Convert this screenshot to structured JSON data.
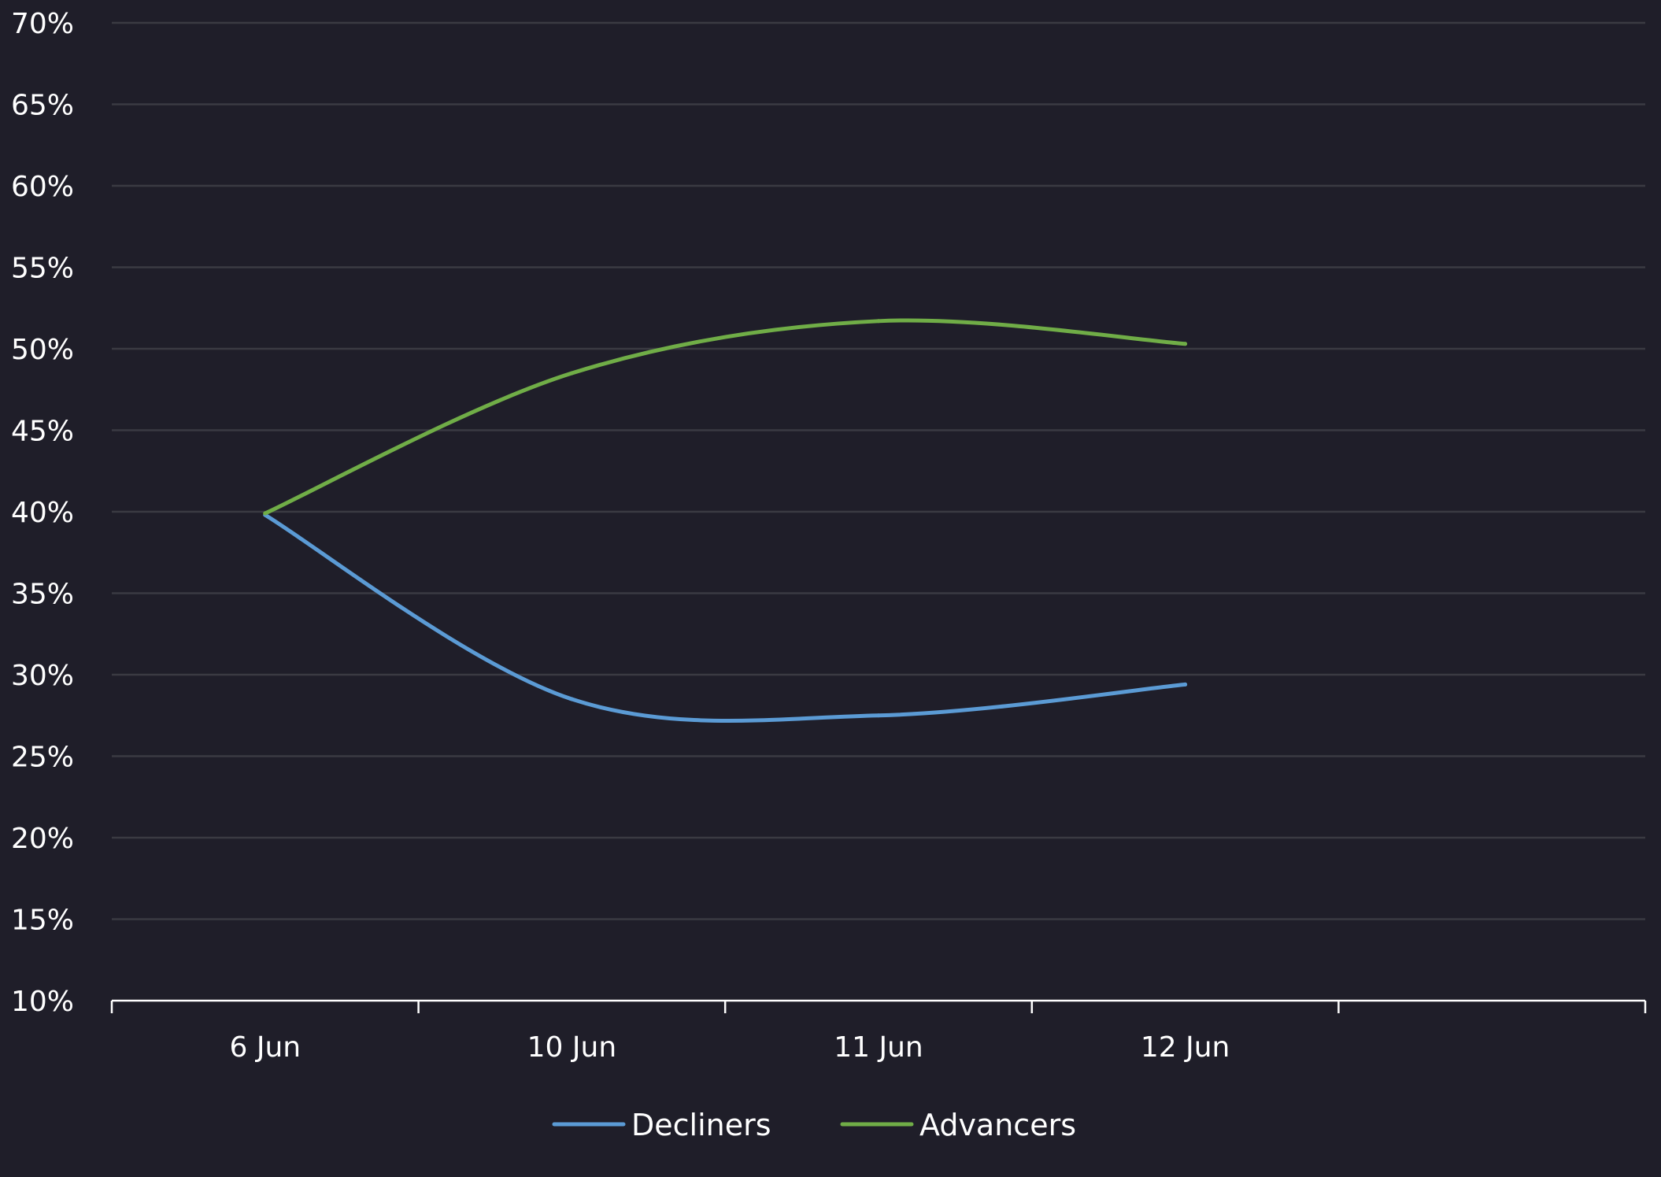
{
  "chart_data": {
    "type": "line",
    "title": "",
    "xlabel": "",
    "ylabel": "",
    "categories": [
      "6 Jun",
      "10 Jun",
      "11 Jun",
      "12 Jun"
    ],
    "ylim": [
      10,
      70
    ],
    "ytick_step": 5,
    "y_ticks": [
      "10%",
      "15%",
      "20%",
      "25%",
      "30%",
      "35%",
      "40%",
      "45%",
      "50%",
      "55%",
      "60%",
      "65%",
      "70%"
    ],
    "grid": true,
    "legend_position": "bottom-center",
    "series": [
      {
        "name": "Decliners",
        "color": "#5b9bd5",
        "values": [
          39.8,
          28.5,
          27.5,
          29.4
        ]
      },
      {
        "name": "Advancers",
        "color": "#70ad47",
        "values": [
          39.9,
          48.5,
          51.7,
          50.3
        ]
      }
    ],
    "colors": {
      "background": "#1f1e29",
      "grid": "#3a3a42",
      "axis": "#ffffff",
      "text": "#ffffff"
    }
  }
}
